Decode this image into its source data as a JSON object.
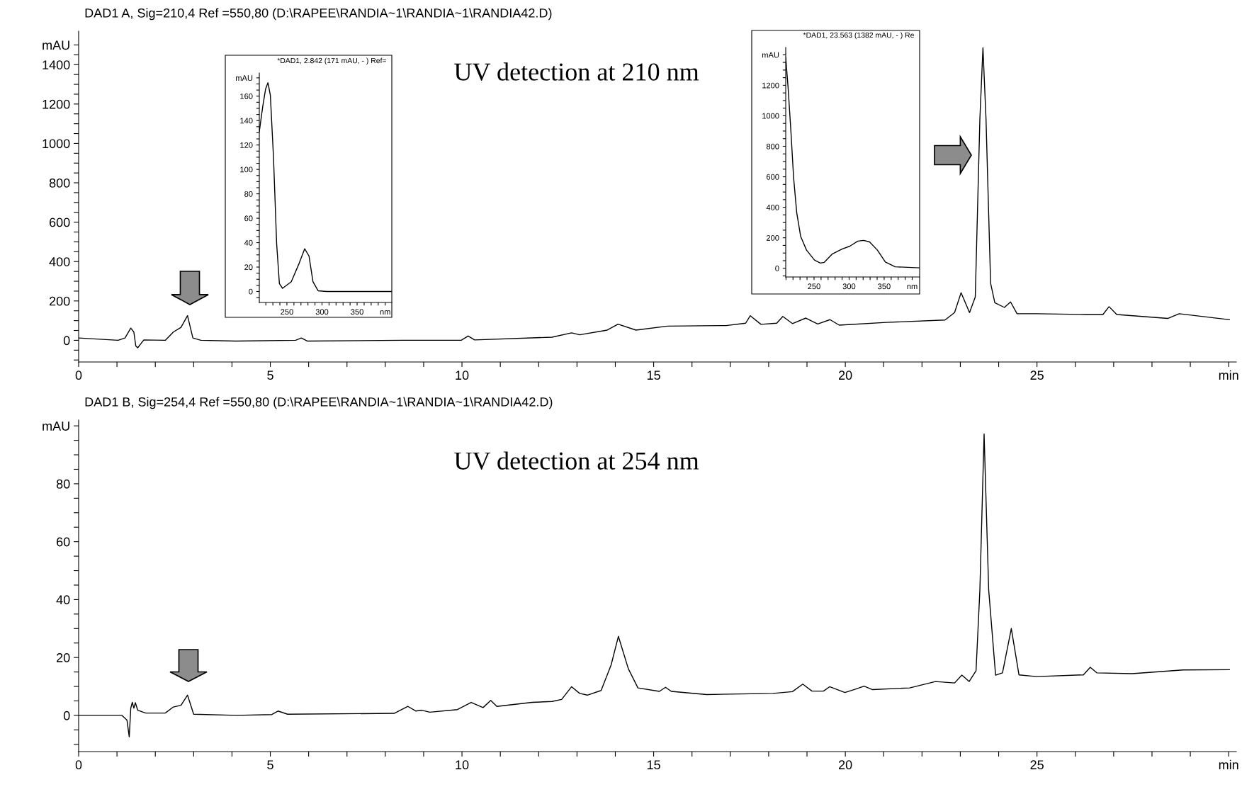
{
  "chart_data": [
    {
      "type": "line",
      "title": "DAD1 A, Sig=210,4 Ref =550,80 (D:\\RAPEE\\RANDIA~1\\RANDIA~1\\RANDIA42.D)",
      "annotations": [
        "UV detection at 210 nm"
      ],
      "xlim": [
        0,
        30.2
      ],
      "xticks": [
        0,
        {
          "value": 1,
          "label": null
        },
        {
          "value": 2,
          "label": null
        },
        {
          "value": 3,
          "label": null
        },
        {
          "value": 4,
          "label": null
        },
        5,
        {
          "value": 6,
          "label": null
        },
        {
          "value": 7,
          "label": null
        },
        {
          "value": 8,
          "label": null
        },
        {
          "value": 9,
          "label": null
        },
        10,
        {
          "value": 11,
          "label": null
        },
        {
          "value": 12,
          "label": null
        },
        {
          "value": 13,
          "label": null
        },
        {
          "value": 14,
          "label": null
        },
        15,
        {
          "value": 16,
          "label": null
        },
        {
          "value": 17,
          "label": null
        },
        {
          "value": 18,
          "label": null
        },
        {
          "value": 19,
          "label": null
        },
        20,
        {
          "value": 21,
          "label": null
        },
        {
          "value": 22,
          "label": null
        },
        {
          "value": 23,
          "label": null
        },
        {
          "value": 24,
          "label": null
        },
        25,
        {
          "value": 26,
          "label": null
        },
        {
          "value": 27,
          "label": null
        },
        {
          "value": 28,
          "label": null
        },
        {
          "value": 29,
          "label": null
        },
        {
          "value": 30,
          "label": "min"
        }
      ],
      "ylim": [
        -110,
        1570
      ],
      "yticks": [
        {
          "value": -100,
          "label": null
        },
        {
          "value": -50,
          "label": null
        },
        0,
        {
          "value": 50,
          "label": null
        },
        {
          "value": 100,
          "label": null
        },
        {
          "value": 150,
          "label": null
        },
        200,
        {
          "value": 250,
          "label": null
        },
        {
          "value": 300,
          "label": null
        },
        {
          "value": 350,
          "label": null
        },
        400,
        {
          "value": 450,
          "label": null
        },
        {
          "value": 500,
          "label": null
        },
        {
          "value": 550,
          "label": null
        },
        600,
        {
          "value": 650,
          "label": null
        },
        {
          "value": 700,
          "label": null
        },
        {
          "value": 750,
          "label": null
        },
        800,
        {
          "value": 850,
          "label": null
        },
        {
          "value": 900,
          "label": null
        },
        {
          "value": 950,
          "label": null
        },
        1000,
        {
          "value": 1050,
          "label": null
        },
        {
          "value": 1100,
          "label": null
        },
        {
          "value": 1150,
          "label": null
        },
        1200,
        {
          "value": 1250,
          "label": null
        },
        {
          "value": 1300,
          "label": null
        },
        {
          "value": 1350,
          "label": null
        },
        1400,
        {
          "value": 1450,
          "label": null
        },
        {
          "value": 1500,
          "label": "mAU"
        }
      ],
      "x": [
        0,
        1.03,
        1.21,
        1.36,
        1.44,
        1.49,
        1.54,
        1.7,
        2.26,
        2.47,
        2.67,
        2.84,
        2.98,
        3.19,
        4.1,
        5.66,
        5.81,
        5.97,
        8.44,
        9.98,
        10.16,
        10.33,
        12.35,
        12.86,
        13.07,
        13.79,
        14.07,
        14.54,
        15.36,
        16.89,
        17.4,
        17.52,
        17.8,
        18.21,
        18.37,
        18.62,
        18.97,
        19.28,
        19.6,
        19.84,
        21.07,
        22.6,
        22.85,
        23.02,
        23.24,
        23.39,
        23.51,
        23.59,
        23.67,
        23.79,
        23.9,
        24.15,
        24.31,
        24.48,
        24.99,
        26.26,
        26.72,
        26.88,
        27.08,
        28.41,
        28.71,
        30.02
      ],
      "series": [
        {
          "color": "#000000",
          "values": [
            12,
            0,
            12,
            62,
            42,
            -28,
            -38,
            2,
            0,
            42,
            66,
            125,
            12,
            0,
            -4,
            0,
            12,
            -4,
            0,
            0,
            22,
            2,
            16,
            38,
            28,
            52,
            82,
            52,
            72,
            75,
            87,
            125,
            81,
            87,
            121,
            85,
            113,
            83,
            105,
            77,
            91,
            103,
            141,
            242,
            141,
            220,
            1124,
            1486,
            1124,
            290,
            191,
            167,
            195,
            135,
            135,
            131,
            131,
            171,
            131,
            111,
            135,
            105
          ]
        }
      ]
    },
    {
      "type": "line",
      "title": "*DAD1, 2.842 (171 mAU, - ) Ref=",
      "xlim": [
        210.7,
        399.4
      ],
      "xticks": [
        {
          "value": 220,
          "label": null
        },
        {
          "value": 230,
          "label": null
        },
        {
          "value": 240,
          "label": null
        },
        250,
        {
          "value": 260,
          "label": null
        },
        {
          "value": 270,
          "label": null
        },
        {
          "value": 280,
          "label": null
        },
        {
          "value": 290,
          "label": null
        },
        300,
        {
          "value": 310,
          "label": null
        },
        {
          "value": 320,
          "label": null
        },
        {
          "value": 330,
          "label": null
        },
        {
          "value": 340,
          "label": null
        },
        350,
        {
          "value": 360,
          "label": null
        },
        {
          "value": 370,
          "label": null
        },
        {
          "value": 380,
          "label": null
        },
        {
          "value": 390,
          "label": "nm"
        }
      ],
      "ylim": [
        -9,
        179
      ],
      "yticks": [
        {
          "value": -5,
          "label": null
        },
        0,
        {
          "value": 5,
          "label": null
        },
        {
          "value": 10,
          "label": null
        },
        {
          "value": 15,
          "label": null
        },
        20,
        {
          "value": 25,
          "label": null
        },
        {
          "value": 30,
          "label": null
        },
        {
          "value": 35,
          "label": null
        },
        40,
        {
          "value": 45,
          "label": null
        },
        {
          "value": 50,
          "label": null
        },
        {
          "value": 55,
          "label": null
        },
        60,
        {
          "value": 65,
          "label": null
        },
        {
          "value": 70,
          "label": null
        },
        {
          "value": 75,
          "label": null
        },
        80,
        {
          "value": 85,
          "label": null
        },
        {
          "value": 90,
          "label": null
        },
        {
          "value": 95,
          "label": null
        },
        100,
        {
          "value": 105,
          "label": null
        },
        {
          "value": 110,
          "label": null
        },
        {
          "value": 115,
          "label": null
        },
        120,
        {
          "value": 125,
          "label": null
        },
        {
          "value": 130,
          "label": null
        },
        {
          "value": 135,
          "label": null
        },
        140,
        {
          "value": 145,
          "label": null
        },
        {
          "value": 150,
          "label": null
        },
        {
          "value": 155,
          "label": null
        },
        160,
        {
          "value": 165,
          "label": null
        },
        {
          "value": 170,
          "label": null
        },
        {
          "value": 175,
          "label": "mAU"
        }
      ],
      "x": [
        210.7,
        215.7,
        219.7,
        223.0,
        226.4,
        230.9,
        235.4,
        239.3,
        243.8,
        256.2,
        267.4,
        275.3,
        281.5,
        287.1,
        294.4,
        306.7,
        399.4
      ],
      "series": [
        {
          "color": "#000000",
          "values": [
            131,
            152,
            166,
            171,
            161,
            110,
            39,
            6.5,
            2.6,
            8,
            23,
            35,
            29,
            8,
            0.6,
            0,
            0
          ]
        }
      ]
    },
    {
      "type": "line",
      "title": "*DAD1, 23.563 (1382 mAU, - ) Re",
      "xlim": [
        209.6,
        400.6
      ],
      "xticks": [
        {
          "value": 210,
          "label": null
        },
        {
          "value": 220,
          "label": null
        },
        {
          "value": 230,
          "label": null
        },
        {
          "value": 240,
          "label": null
        },
        250,
        {
          "value": 260,
          "label": null
        },
        {
          "value": 270,
          "label": null
        },
        {
          "value": 280,
          "label": null
        },
        {
          "value": 290,
          "label": null
        },
        300,
        {
          "value": 310,
          "label": null
        },
        {
          "value": 320,
          "label": null
        },
        {
          "value": 330,
          "label": null
        },
        {
          "value": 340,
          "label": null
        },
        350,
        {
          "value": 360,
          "label": null
        },
        {
          "value": 370,
          "label": null
        },
        {
          "value": 380,
          "label": null
        },
        {
          "value": 390,
          "label": "nm"
        }
      ],
      "ylim": [
        -57,
        1448
      ],
      "yticks": [
        {
          "value": -50,
          "label": null
        },
        0,
        {
          "value": 50,
          "label": null
        },
        {
          "value": 100,
          "label": null
        },
        {
          "value": 150,
          "label": null
        },
        200,
        {
          "value": 250,
          "label": null
        },
        {
          "value": 300,
          "label": null
        },
        {
          "value": 350,
          "label": null
        },
        400,
        {
          "value": 450,
          "label": null
        },
        {
          "value": 500,
          "label": null
        },
        {
          "value": 550,
          "label": null
        },
        600,
        {
          "value": 650,
          "label": null
        },
        {
          "value": 700,
          "label": null
        },
        {
          "value": 750,
          "label": null
        },
        800,
        {
          "value": 850,
          "label": null
        },
        {
          "value": 900,
          "label": null
        },
        {
          "value": 950,
          "label": null
        },
        1000,
        {
          "value": 1050,
          "label": null
        },
        {
          "value": 1100,
          "label": null
        },
        {
          "value": 1150,
          "label": null
        },
        1200,
        {
          "value": 1250,
          "label": null
        },
        {
          "value": 1300,
          "label": null
        },
        {
          "value": 1350,
          "label": null
        },
        {
          "value": 1400,
          "label": "mAU"
        }
      ],
      "x": [
        209.6,
        212.9,
        216.9,
        220.8,
        225.3,
        230.9,
        239.3,
        250.6,
        259.0,
        264.6,
        275.8,
        289.9,
        301.1,
        312.4,
        320.8,
        329.2,
        340.4,
        351.7,
        365.7,
        400.6
      ],
      "series": [
        {
          "color": "#000000",
          "values": [
            1382,
            1190,
            906,
            596,
            364,
            209,
            119,
            54,
            34,
            39,
            93,
            126,
            145,
            178,
            183,
            173,
            119,
            41,
            10,
            3
          ]
        }
      ]
    },
    {
      "type": "line",
      "title": "DAD1 B, Sig=254,4 Ref =550,80 (D:\\RAPEE\\RANDIA~1\\RANDIA~1\\RANDIA42.D)",
      "annotations": [
        "UV detection at 254 nm"
      ],
      "xlim": [
        0,
        30.2
      ],
      "xticks": [
        0,
        {
          "value": 1,
          "label": null
        },
        {
          "value": 2,
          "label": null
        },
        {
          "value": 3,
          "label": null
        },
        {
          "value": 4,
          "label": null
        },
        5,
        {
          "value": 6,
          "label": null
        },
        {
          "value": 7,
          "label": null
        },
        {
          "value": 8,
          "label": null
        },
        {
          "value": 9,
          "label": null
        },
        10,
        {
          "value": 11,
          "label": null
        },
        {
          "value": 12,
          "label": null
        },
        {
          "value": 13,
          "label": null
        },
        {
          "value": 14,
          "label": null
        },
        15,
        {
          "value": 16,
          "label": null
        },
        {
          "value": 17,
          "label": null
        },
        {
          "value": 18,
          "label": null
        },
        {
          "value": 19,
          "label": null
        },
        20,
        {
          "value": 21,
          "label": null
        },
        {
          "value": 22,
          "label": null
        },
        {
          "value": 23,
          "label": null
        },
        {
          "value": 24,
          "label": null
        },
        25,
        {
          "value": 26,
          "label": null
        },
        {
          "value": 27,
          "label": null
        },
        {
          "value": 28,
          "label": null
        },
        {
          "value": 29,
          "label": null
        },
        {
          "value": 30,
          "label": "min"
        }
      ],
      "ylim": [
        -12.5,
        102
      ],
      "yticks": [
        {
          "value": -10,
          "label": null
        },
        {
          "value": -5,
          "label": null
        },
        0,
        {
          "value": 5,
          "label": null
        },
        {
          "value": 10,
          "label": null
        },
        {
          "value": 15,
          "label": null
        },
        20,
        {
          "value": 25,
          "label": null
        },
        {
          "value": 30,
          "label": null
        },
        {
          "value": 35,
          "label": null
        },
        40,
        {
          "value": 45,
          "label": null
        },
        {
          "value": 50,
          "label": null
        },
        {
          "value": 55,
          "label": null
        },
        60,
        {
          "value": 65,
          "label": null
        },
        {
          "value": 70,
          "label": null
        },
        {
          "value": 75,
          "label": null
        },
        80,
        {
          "value": 85,
          "label": null
        },
        {
          "value": 90,
          "label": null
        },
        {
          "value": 95,
          "label": null
        },
        {
          "value": 100,
          "label": "mAU"
        }
      ],
      "x": [
        0,
        1.13,
        1.26,
        1.32,
        1.36,
        1.4,
        1.44,
        1.48,
        1.54,
        1.75,
        2.26,
        2.47,
        2.67,
        2.84,
        3.0,
        4.12,
        5.04,
        5.2,
        5.45,
        8.23,
        8.59,
        8.8,
        8.95,
        9.16,
        9.88,
        10.24,
        10.55,
        10.75,
        10.91,
        11.83,
        12.35,
        12.6,
        12.86,
        13.07,
        13.27,
        13.63,
        13.89,
        14.08,
        14.34,
        14.59,
        15.15,
        15.31,
        15.46,
        16.38,
        18.11,
        18.62,
        18.89,
        19.13,
        19.43,
        19.59,
        19.99,
        20.25,
        20.49,
        20.71,
        21.68,
        22.35,
        22.85,
        23.04,
        23.23,
        23.41,
        23.51,
        23.62,
        23.74,
        23.92,
        24.1,
        24.33,
        24.53,
        24.99,
        26.21,
        26.39,
        26.56,
        27.48,
        28.81,
        30.02
      ],
      "series": [
        {
          "color": "#000000",
          "values": [
            0,
            0,
            -1.6,
            -7.4,
            2.5,
            4.5,
            2.5,
            4.4,
            1.8,
            0.8,
            0.8,
            2.9,
            3.5,
            7,
            0.4,
            0,
            0.3,
            1.5,
            0.4,
            0.7,
            3.1,
            1.5,
            1.8,
            1.1,
            2,
            4.5,
            2.7,
            5.2,
            3.1,
            4.5,
            4.8,
            5.5,
            9.9,
            7.6,
            7,
            8.6,
            17.4,
            27.3,
            16.1,
            9.5,
            8.3,
            9.7,
            8.3,
            7.2,
            7.6,
            8.2,
            10.8,
            8.4,
            8.4,
            9.9,
            7.9,
            9,
            10.1,
            8.9,
            9.5,
            11.7,
            11.2,
            13.9,
            11.7,
            15.4,
            43.3,
            97.2,
            43.3,
            13.9,
            14.7,
            30,
            14,
            13.4,
            14,
            16.6,
            14.7,
            14.4,
            15.7,
            15.8
          ]
        }
      ]
    }
  ]
}
